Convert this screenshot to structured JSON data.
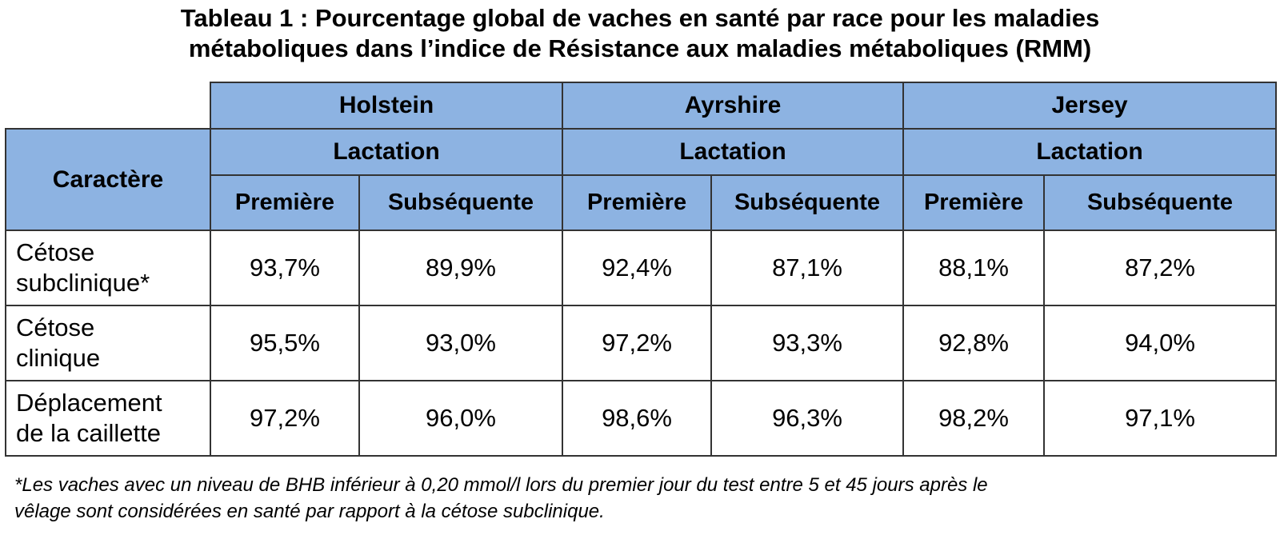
{
  "title": {
    "line1": "Tableau 1 : Pourcentage global de vaches en santé par race pour les maladies",
    "line2": "métaboliques dans l’indice de Résistance aux maladies métaboliques (RMM)"
  },
  "table": {
    "trait_header": "Caractère",
    "breeds": [
      "Holstein",
      "Ayrshire",
      "Jersey"
    ],
    "lactation_label": "Lactation",
    "subcolumns": [
      "Première",
      "Subséquente"
    ],
    "rows": [
      {
        "label_line1": "Cétose",
        "label_line2": "subclinique*",
        "values": [
          "93,7%",
          "89,9%",
          "92,4%",
          "87,1%",
          "88,1%",
          "87,2%"
        ]
      },
      {
        "label_line1": "Cétose",
        "label_line2": "clinique",
        "values": [
          "95,5%",
          "93,0%",
          "97,2%",
          "93,3%",
          "92,8%",
          "94,0%"
        ]
      },
      {
        "label_line1": "Déplacement",
        "label_line2": "de la caillette",
        "values": [
          "97,2%",
          "96,0%",
          "98,6%",
          "96,3%",
          "98,2%",
          "97,1%"
        ]
      }
    ]
  },
  "footnote": {
    "line1": "*Les vaches avec un niveau de BHB inférieur à 0,20 mmol/l lors du premier jour du test entre 5 et 45 jours après le",
    "line2": "vêlage sont considérées en santé par rapport à la cétose subclinique."
  }
}
